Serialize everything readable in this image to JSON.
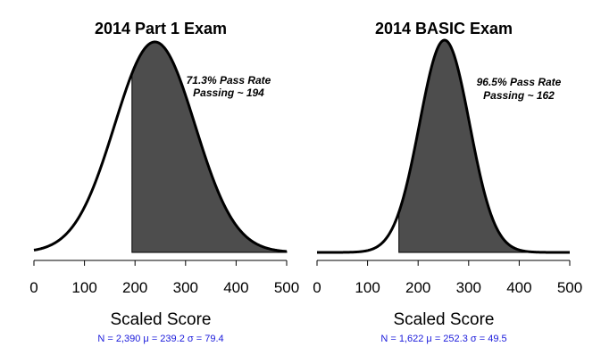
{
  "chart_data": [
    {
      "type": "area",
      "title": "2014 Part 1 Exam",
      "xlabel": "Scaled Score",
      "ylabel": "",
      "xlim": [
        0,
        500
      ],
      "x_ticks": [
        0,
        100,
        200,
        300,
        400,
        500
      ],
      "x_tick_labels": [
        "0",
        "100",
        "200",
        "300",
        "400",
        "500"
      ],
      "distribution": "normal",
      "mean": 239.2,
      "sd": 79.4,
      "n": 2390,
      "shaded_from": 194,
      "shaded_to": 500,
      "annotation_lines": [
        "71.3% Pass Rate",
        "Passing ~ 194"
      ],
      "stats_text": "N = 2,390  μ = 239.2  σ = 79.4",
      "grid": false,
      "legend": "none"
    },
    {
      "type": "area",
      "title": "2014 BASIC Exam",
      "xlabel": "Scaled Score",
      "ylabel": "",
      "xlim": [
        0,
        500
      ],
      "x_ticks": [
        0,
        100,
        200,
        300,
        400,
        500
      ],
      "x_tick_labels": [
        "0",
        "100",
        "200",
        "300",
        "400",
        "500"
      ],
      "distribution": "normal",
      "mean": 252.3,
      "sd": 49.5,
      "n": 1622,
      "shaded_from": 162,
      "shaded_to": 500,
      "annotation_lines": [
        "96.5% Pass Rate",
        "Passing ~ 162"
      ],
      "stats_text": "N = 1,622  μ = 252.3  σ = 49.5",
      "grid": false,
      "legend": "none"
    }
  ],
  "colors": {
    "fill": "#4d4d4d",
    "curve": "#000000",
    "stats_text": "#1a1adb",
    "axis": "#000000"
  }
}
